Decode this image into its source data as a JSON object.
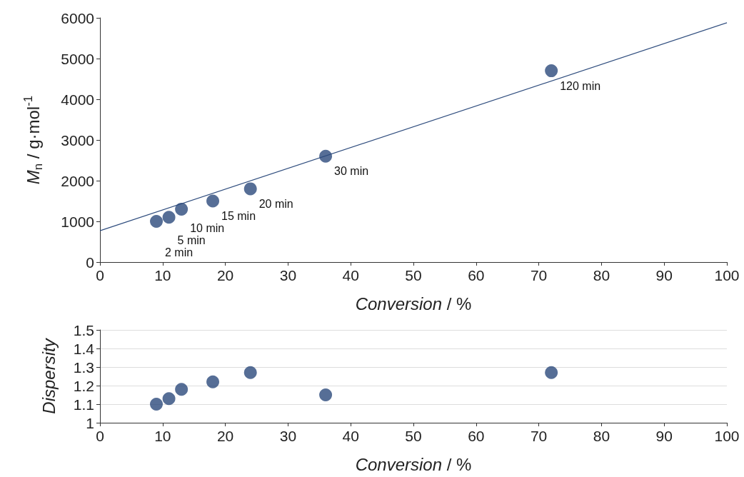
{
  "chart_data": [
    {
      "type": "scatter",
      "xlabel": "Conversion / %",
      "ylabel": "M$_{n}$ / g·mol$^{-1}$",
      "xlim": [
        0,
        100
      ],
      "xticks": [
        0,
        10,
        20,
        30,
        40,
        50,
        60,
        70,
        80,
        90,
        100
      ],
      "ylim": [
        0,
        6000
      ],
      "yticks": [
        0,
        1000,
        2000,
        3000,
        4000,
        5000,
        6000
      ],
      "grid": false,
      "marker": "circle",
      "series": [
        {
          "type": "scatter",
          "color": "#2c4a7c",
          "x": [
            9,
            11,
            13,
            18,
            24,
            36,
            72
          ],
          "values": [
            1000,
            1100,
            1300,
            1500,
            1800,
            2600,
            4700
          ]
        },
        {
          "type": "line",
          "color": "#2f4d7e",
          "marker": "none",
          "line_style": "solid",
          "x": [
            0,
            100
          ],
          "values": [
            770,
            5880
          ]
        }
      ],
      "annotations": [
        {
          "text": "2 min",
          "x": 9,
          "y": 1000
        },
        {
          "text": "5 min",
          "x": 11,
          "y": 1100
        },
        {
          "text": "10 min",
          "x": 13,
          "y": 1300
        },
        {
          "text": "15 min",
          "x": 18,
          "y": 1500
        },
        {
          "text": "20 min",
          "x": 24,
          "y": 1800
        },
        {
          "text": "30 min",
          "x": 36,
          "y": 2600
        },
        {
          "text": "120 min",
          "x": 72,
          "y": 4700
        }
      ]
    },
    {
      "type": "scatter",
      "xlabel": "Conversion / %",
      "ylabel": "Dispersity",
      "xlim": [
        0,
        100
      ],
      "xticks": [
        0,
        10,
        20,
        30,
        40,
        50,
        60,
        70,
        80,
        90,
        100
      ],
      "ylim": [
        1,
        1.5
      ],
      "yticks": [
        1,
        1.1,
        1.2,
        1.3,
        1.4,
        1.5
      ],
      "grid": "y",
      "marker": "circle",
      "series": [
        {
          "type": "scatter",
          "color": "#2c4a7c",
          "x": [
            9,
            11,
            13,
            18,
            24,
            36,
            72
          ],
          "values": [
            1.1,
            1.13,
            1.18,
            1.22,
            1.27,
            1.15,
            1.27
          ]
        }
      ]
    }
  ]
}
